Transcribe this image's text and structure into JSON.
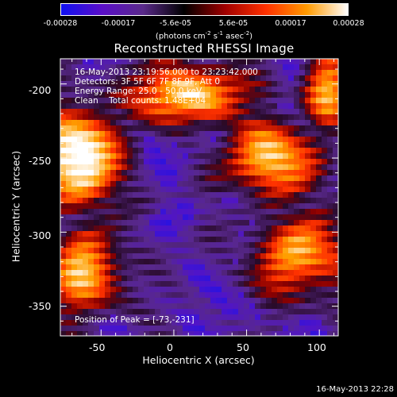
{
  "colorbar": {
    "ticks": [
      "-0.00028",
      "-0.00017",
      "-5.6e-05",
      "5.6e-05",
      "0.00017",
      "0.00028"
    ],
    "unit_base": "(photons cm",
    "unit_exp1": "-2",
    "unit_mid1": " s",
    "unit_exp2": "-1",
    "unit_mid2": " asec",
    "unit_exp3": "-2",
    "unit_close": ")",
    "colors": [
      "#1010f0",
      "#5a0ec8",
      "#5a2a8a",
      "#000000",
      "#a00000",
      "#ff3000",
      "#ff9a00",
      "#ffffff"
    ]
  },
  "chart_data": {
    "type": "heatmap",
    "title": "Reconstructed RHESSI Image",
    "xlabel": "Heliocentric X (arcsec)",
    "ylabel": "Heliocentric Y (arcsec)",
    "xlim": [
      -78,
      113
    ],
    "ylim": [
      -370,
      -183
    ],
    "xticks": [
      -50,
      0,
      50,
      100
    ],
    "yticks": [
      -200,
      -250,
      -300,
      -350
    ],
    "value_range": [
      -0.00028,
      0.00028
    ],
    "peak": [
      -73,
      -231
    ],
    "info_lines": [
      "16-May-2013 23:19:56.000 to 23:23:42.000",
      "Detectors: 3F 5F 6F 7F 8F 9F, Att 0",
      "Energy Range: 25.0 - 50.0 keV",
      "Clean    Total counts: 1.48E+04"
    ],
    "peak_label": "Position of Peak = [-73,-231]"
  },
  "timestamp": "16-May-2013 22:28"
}
